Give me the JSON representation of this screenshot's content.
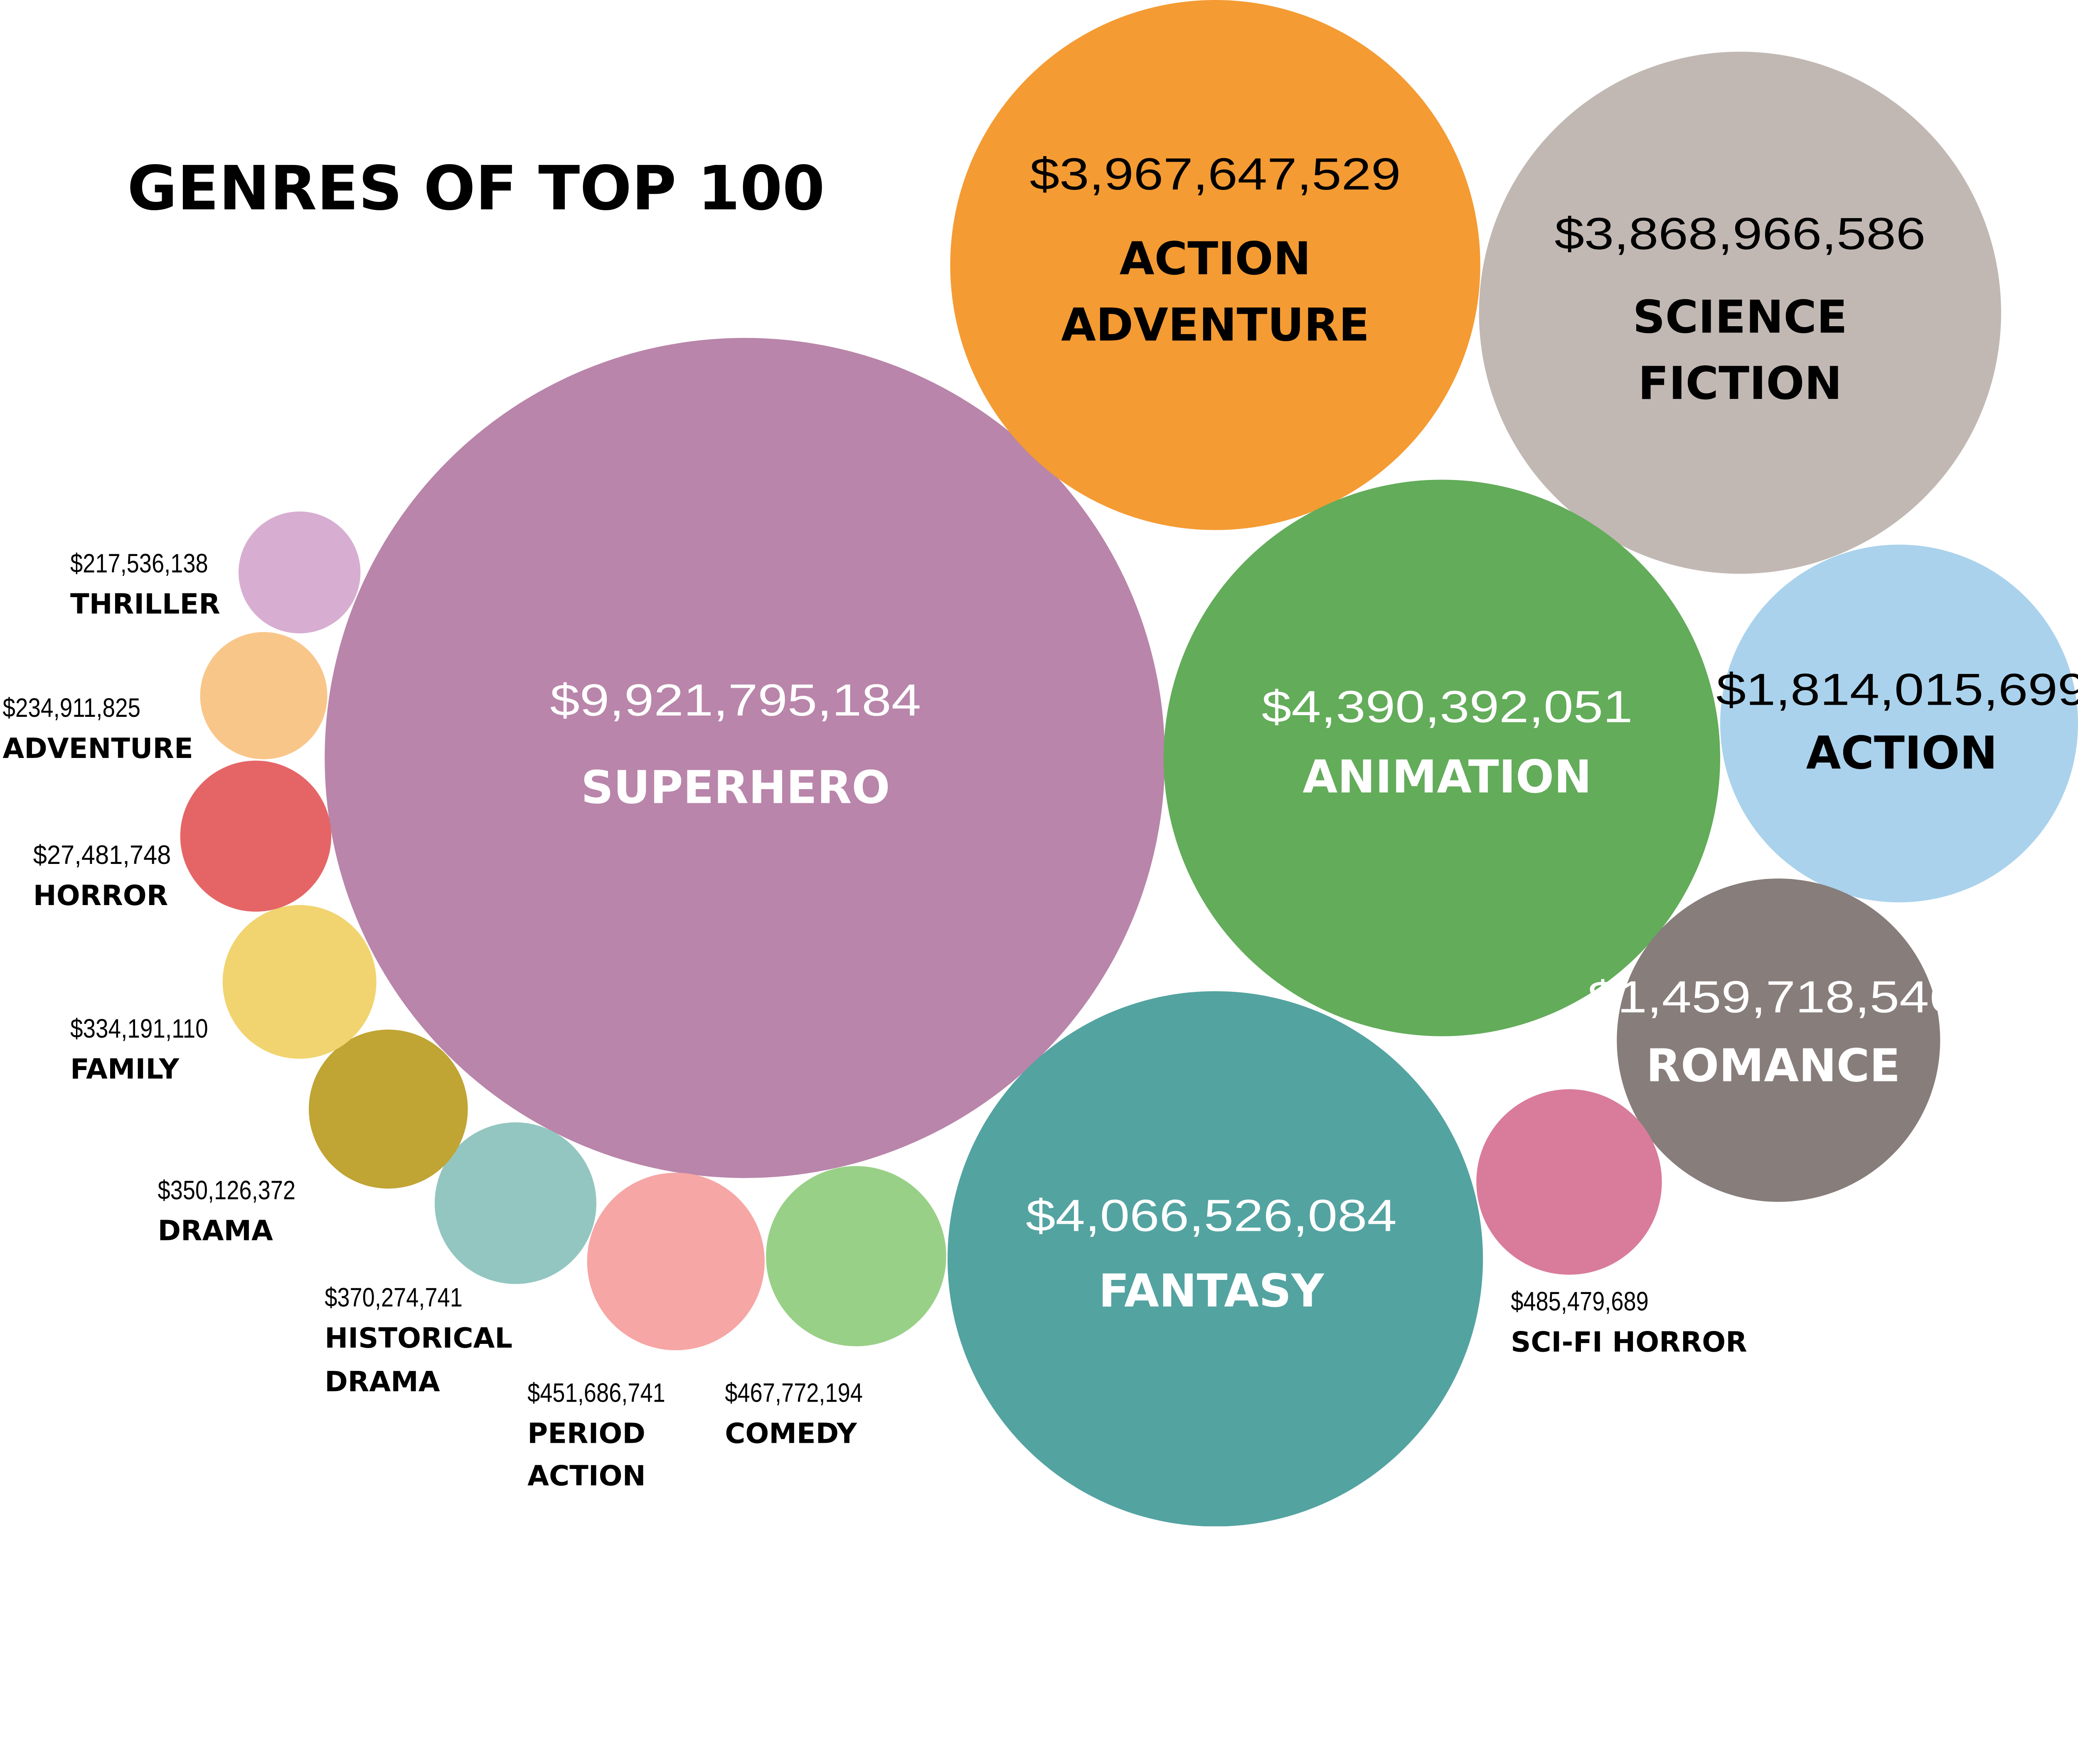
{
  "chart_data": {
    "type": "bubble",
    "title": "GENRES OF TOP 100",
    "series": [
      {
        "genre": "SUPERHERO",
        "label_lines": [
          "SUPERHERO"
        ],
        "value": 9921795184,
        "value_label": "$9,921,795,184",
        "color": "#b985aa"
      },
      {
        "genre": "ACTION ADVENTURE",
        "label_lines": [
          "ACTION",
          "ADVENTURE"
        ],
        "value": 3967647529,
        "value_label": "$3,967,647,529",
        "color": "#f49b33"
      },
      {
        "genre": "SCIENCE FICTION",
        "label_lines": [
          "SCIENCE",
          "FICTION"
        ],
        "value": 3868966586,
        "value_label": "$3,868,966,586",
        "color": "#c1b8b3"
      },
      {
        "genre": "ANIMATION",
        "label_lines": [
          "ANIMATION"
        ],
        "value": 4390392051,
        "value_label": "$4,390,392,051",
        "color": "#63ac5a"
      },
      {
        "genre": "ACTION",
        "label_lines": [
          "ACTION"
        ],
        "value": 1814015699,
        "value_label": "$1,814,015,699",
        "color": "#aad2ec"
      },
      {
        "genre": "ROMANCE",
        "label_lines": [
          "ROMANCE"
        ],
        "value": 1459718546,
        "value_label": "$1,459,718,546",
        "color": "#877d7b"
      },
      {
        "genre": "FANTASY",
        "label_lines": [
          "FANTASY"
        ],
        "value": 4066526084,
        "value_label": "$4,066,526,084",
        "color": "#53a3a1"
      },
      {
        "genre": "SCI-FI HORROR",
        "label_lines": [
          "SCI-FI HORROR"
        ],
        "value": 485479689,
        "value_label": "$485,479,689",
        "color": "#d97c9c"
      },
      {
        "genre": "COMEDY",
        "label_lines": [
          "COMEDY"
        ],
        "value": 467772194,
        "value_label": "$467,772,194",
        "color": "#99d088"
      },
      {
        "genre": "PERIOD ACTION",
        "label_lines": [
          "PERIOD",
          "ACTION"
        ],
        "value": 451686741,
        "value_label": "$451,686,741",
        "color": "#f6a6a5"
      },
      {
        "genre": "HISTORICAL DRAMA",
        "label_lines": [
          "HISTORICAL",
          "DRAMA"
        ],
        "value": 370274741,
        "value_label": "$370,274,741",
        "color": "#93c6c0"
      },
      {
        "genre": "DRAMA",
        "label_lines": [
          "DRAMA"
        ],
        "value": 350126372,
        "value_label": "$350,126,372",
        "color": "#c0a434"
      },
      {
        "genre": "FAMILY",
        "label_lines": [
          "FAMILY"
        ],
        "value": 334191110,
        "value_label": "$334,191,110",
        "color": "#f1d46f"
      },
      {
        "genre": "HORROR",
        "label_lines": [
          "HORROR"
        ],
        "value": 27481748,
        "value_label": "$27,481,748",
        "color": "#e56566"
      },
      {
        "genre": "ADVENTURE",
        "label_lines": [
          "ADVENTURE"
        ],
        "value": 234911825,
        "value_label": "$234,911,825",
        "color": "#f9c68a"
      },
      {
        "genre": "THRILLER",
        "label_lines": [
          "THRILLER"
        ],
        "value": 217536138,
        "value_label": "$217,536,138",
        "color": "#d7aed1"
      }
    ]
  }
}
